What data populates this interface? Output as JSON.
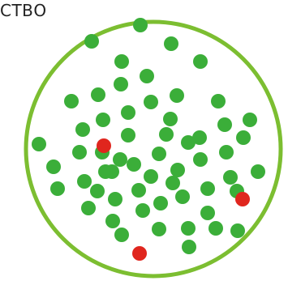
{
  "caption": "СТВО",
  "colors": {
    "ring": "#7cbe31",
    "green_dot": "#3bae39",
    "red_dot": "#e0261e",
    "text": "#222222"
  },
  "dots": {
    "green_count": 58,
    "red_count": 3
  }
}
